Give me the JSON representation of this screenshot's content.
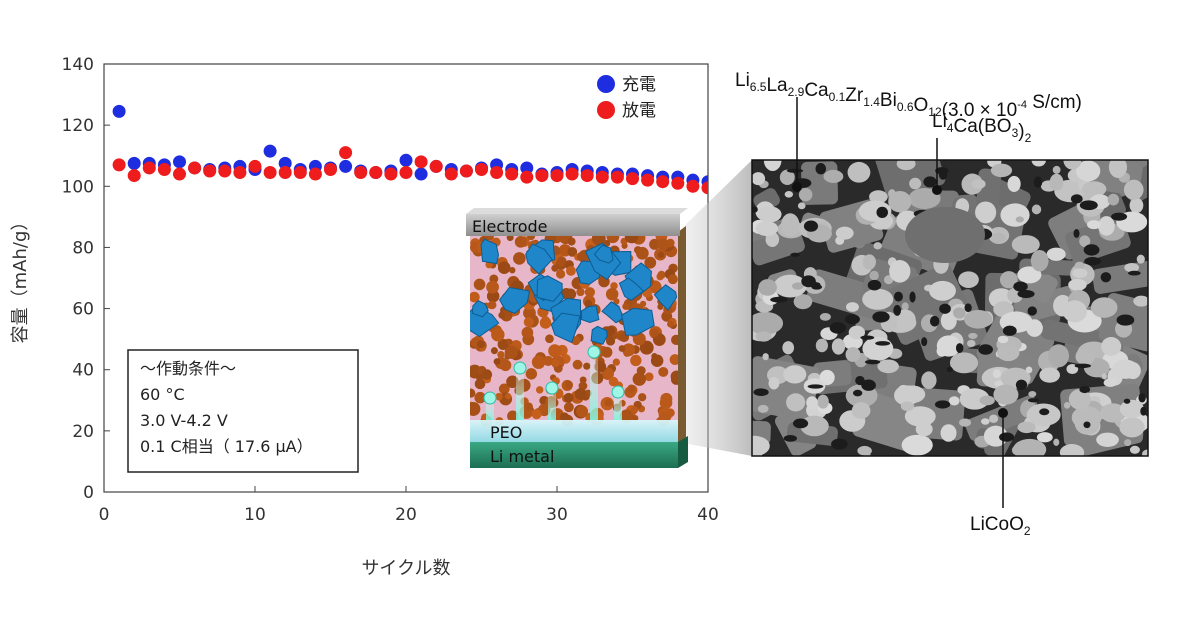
{
  "chart_data": {
    "type": "scatter",
    "xlabel": "サイクル数",
    "ylabel": "容量（mAh/g）",
    "xlim": [
      0,
      40
    ],
    "ylim": [
      0,
      140
    ],
    "xticks": [
      0,
      10,
      20,
      30,
      40
    ],
    "yticks": [
      0,
      20,
      40,
      60,
      80,
      100,
      120,
      140
    ],
    "legend_position": "top-right",
    "series": [
      {
        "name": "充電",
        "color": "#1f2de0",
        "x": [
          1,
          2,
          3,
          4,
          5,
          6,
          7,
          8,
          9,
          10,
          11,
          12,
          13,
          14,
          15,
          16,
          17,
          18,
          19,
          20,
          21,
          22,
          23,
          24,
          25,
          26,
          27,
          28,
          29,
          30,
          31,
          32,
          33,
          34,
          35,
          36,
          37,
          38,
          39,
          40
        ],
        "y": [
          124.5,
          107.5,
          107.5,
          107,
          108,
          106,
          105.5,
          106,
          106.5,
          105.5,
          111.5,
          107.5,
          105.5,
          106.5,
          106,
          106.5,
          105,
          104.5,
          105,
          108.5,
          104,
          106.5,
          105.5,
          105,
          106,
          107,
          105.5,
          106,
          104,
          104.5,
          105.5,
          105,
          104.5,
          104,
          104,
          103.5,
          103,
          103,
          102,
          101.5
        ]
      },
      {
        "name": "放電",
        "color": "#ee1c1c",
        "x": [
          1,
          2,
          3,
          4,
          5,
          6,
          7,
          8,
          9,
          10,
          11,
          12,
          13,
          14,
          15,
          16,
          17,
          18,
          19,
          20,
          21,
          22,
          23,
          24,
          25,
          26,
          27,
          28,
          29,
          30,
          31,
          32,
          33,
          34,
          35,
          36,
          37,
          38,
          39,
          40
        ],
        "y": [
          107,
          103.5,
          106,
          105.5,
          104,
          106,
          105,
          105,
          104.5,
          106.5,
          104.5,
          104.5,
          104.5,
          104,
          105.5,
          111,
          104.5,
          104.5,
          104,
          104.5,
          108,
          106.5,
          104,
          105,
          105.5,
          104.5,
          104,
          103,
          103.5,
          103.5,
          104,
          103.5,
          103,
          103,
          102.5,
          102,
          101.5,
          101,
          100,
          99.5
        ]
      }
    ]
  },
  "conditions": {
    "title": "〜作動条件〜",
    "lines": [
      "60 °C",
      "3.0 V-4.2 V",
      "0.1 C相当（ 17.6 μA）"
    ]
  },
  "schematic": {
    "electrode_label": "Electrode",
    "peo_label": "PEO",
    "li_label": "Li metal",
    "colors": {
      "electrode": "#8a8a8a",
      "particle": "#b8621e",
      "crystal": "#1f86c9",
      "li": "#2a8f6b",
      "peo": "#a8e6ee"
    }
  },
  "annotations": {
    "garnet": {
      "parts": [
        {
          "t": "Li",
          "s": ""
        },
        {
          "t": "6.5",
          "s": "sub"
        },
        {
          "t": "La",
          "s": ""
        },
        {
          "t": "2.9",
          "s": "sub"
        },
        {
          "t": "Ca",
          "s": ""
        },
        {
          "t": "0.1",
          "s": "sub"
        },
        {
          "t": "Zr",
          "s": ""
        },
        {
          "t": "1.4",
          "s": "sub"
        },
        {
          "t": "Bi",
          "s": ""
        },
        {
          "t": "0.6",
          "s": "sub"
        },
        {
          "t": "O",
          "s": ""
        },
        {
          "t": "12",
          "s": "sub"
        },
        {
          "t": "(3.0 × 10",
          "s": ""
        },
        {
          "t": "-4",
          "s": "sup"
        },
        {
          "t": " S/cm)",
          "s": ""
        }
      ]
    },
    "borate": {
      "parts": [
        {
          "t": "Li",
          "s": ""
        },
        {
          "t": "4",
          "s": "sub"
        },
        {
          "t": "Ca(BO",
          "s": ""
        },
        {
          "t": "3",
          "s": "sub"
        },
        {
          "t": ")",
          "s": ""
        },
        {
          "t": "2",
          "s": "sub"
        }
      ]
    },
    "cathode": {
      "parts": [
        {
          "t": "LiCoO",
          "s": ""
        },
        {
          "t": "2",
          "s": "sub"
        }
      ]
    }
  }
}
